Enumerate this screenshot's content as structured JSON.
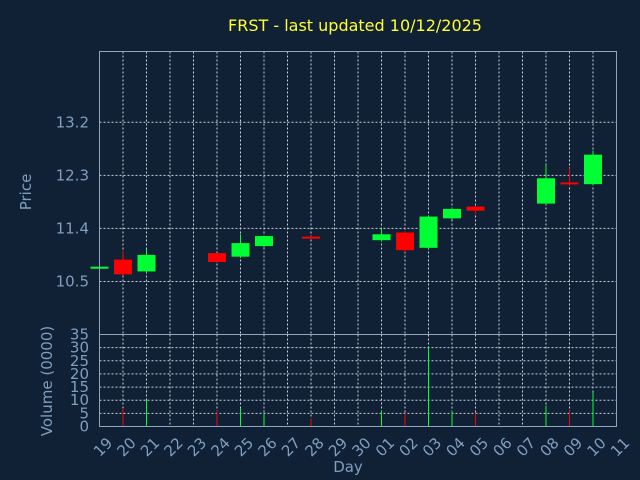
{
  "chart_data": {
    "type": "candlestick",
    "title": "FRST - last updated 10/12/2025",
    "xlabel": "Day",
    "ylabel_price": "Price",
    "ylabel_volume": "Volume (0000)",
    "price_ticks": [
      "13.2",
      "12.3",
      "11.4",
      "10.5"
    ],
    "price_tick_values": [
      13.2,
      12.3,
      11.4,
      10.5
    ],
    "price_range": [
      9.6,
      14.4
    ],
    "volume_ticks": [
      "35",
      "30",
      "25",
      "20",
      "15",
      "10",
      "5",
      "0"
    ],
    "volume_tick_values": [
      35,
      30,
      25,
      20,
      15,
      10,
      5,
      0
    ],
    "volume_range": [
      0,
      35
    ],
    "x_ticks": [
      "19",
      "20",
      "21",
      "22",
      "23",
      "24",
      "25",
      "26",
      "27",
      "28",
      "29",
      "30",
      "01",
      "02",
      "03",
      "04",
      "05",
      "06",
      "07",
      "08",
      "09",
      "10",
      "11"
    ],
    "grid": true,
    "up_color": "#00ff33",
    "down_color": "#ff0000",
    "candles": [
      {
        "day": "19",
        "open": 10.72,
        "close": 10.75,
        "high": 10.76,
        "low": 10.71,
        "volume": 1
      },
      {
        "day": "20",
        "open": 10.87,
        "close": 10.62,
        "high": 11.02,
        "low": 10.6,
        "volume": 7
      },
      {
        "day": "21",
        "open": 10.67,
        "close": 10.95,
        "high": 11.05,
        "low": 10.65,
        "volume": 10
      },
      {
        "day": "24",
        "open": 10.98,
        "close": 10.83,
        "high": 10.98,
        "low": 10.82,
        "volume": 6
      },
      {
        "day": "25",
        "open": 10.92,
        "close": 11.15,
        "high": 11.3,
        "low": 10.9,
        "volume": 7
      },
      {
        "day": "26",
        "open": 11.1,
        "close": 11.27,
        "high": 11.28,
        "low": 11.08,
        "volume": 5
      },
      {
        "day": "28",
        "open": 11.26,
        "close": 11.23,
        "high": 11.27,
        "low": 11.22,
        "volume": 3
      },
      {
        "day": "01",
        "open": 11.2,
        "close": 11.3,
        "high": 11.4,
        "low": 11.18,
        "volume": 6
      },
      {
        "day": "02",
        "open": 11.33,
        "close": 11.03,
        "high": 11.35,
        "low": 11.0,
        "volume": 5
      },
      {
        "day": "03",
        "open": 11.07,
        "close": 11.6,
        "high": 11.62,
        "low": 11.05,
        "volume": 30
      },
      {
        "day": "04",
        "open": 11.57,
        "close": 11.73,
        "high": 11.75,
        "low": 11.55,
        "volume": 6
      },
      {
        "day": "05",
        "open": 11.77,
        "close": 11.7,
        "high": 11.78,
        "low": 11.65,
        "volume": 5
      },
      {
        "day": "08",
        "open": 11.82,
        "close": 12.25,
        "high": 12.48,
        "low": 11.8,
        "volume": 8
      },
      {
        "day": "09",
        "open": 12.18,
        "close": 12.15,
        "high": 12.42,
        "low": 12.13,
        "volume": 6
      },
      {
        "day": "10",
        "open": 12.15,
        "close": 12.65,
        "high": 12.72,
        "low": 12.13,
        "volume": 13
      }
    ]
  }
}
